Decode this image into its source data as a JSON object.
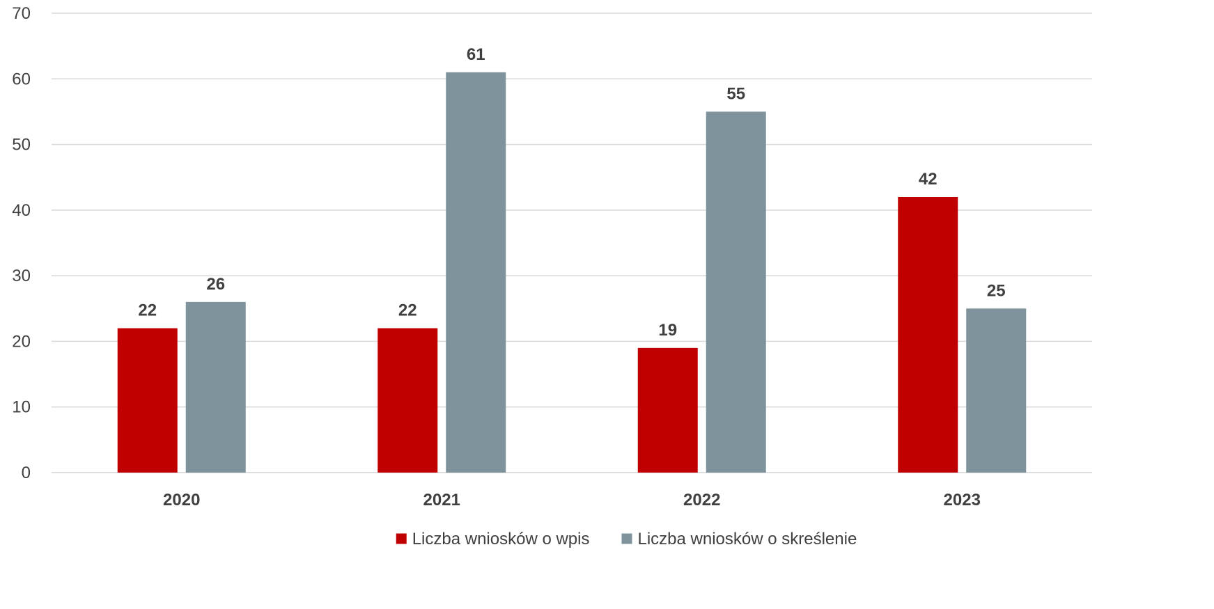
{
  "chart_data": {
    "type": "bar",
    "categories": [
      "2020",
      "2021",
      "2022",
      "2023"
    ],
    "series": [
      {
        "name": "Liczba wniosków o wpis",
        "color": "#C00000",
        "values": [
          22,
          22,
          19,
          42
        ]
      },
      {
        "name": "Liczba wniosków o skreślenie",
        "color": "#7F939C",
        "values": [
          26,
          61,
          55,
          25
        ]
      }
    ],
    "ylim": [
      0,
      70
    ],
    "yticks": [
      0,
      10,
      20,
      30,
      40,
      50,
      60,
      70
    ],
    "grid": true,
    "gridline_color": "#D9D9D9",
    "legend_position": "bottom",
    "data_labels": true,
    "title": "",
    "xlabel": "",
    "ylabel": ""
  }
}
